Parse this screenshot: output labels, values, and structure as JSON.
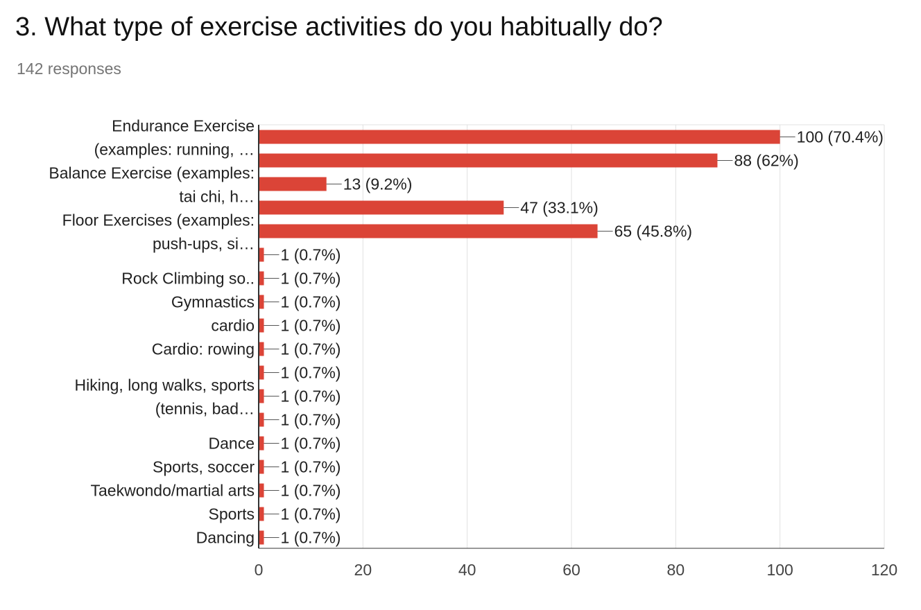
{
  "question": {
    "title": "3. What type of exercise activities do you habitually do?",
    "responses": "142 responses"
  },
  "colors": {
    "bar": "#db4437",
    "grid": "#e0e0e0",
    "axis": "#333333",
    "label": "#212121",
    "tick": "#444444"
  },
  "chart_data": {
    "type": "bar",
    "orientation": "horizontal",
    "categories": [
      "Endurance Exercise (examples: running, …",
      "",
      "Balance Exercise (examples: tai chi, h…",
      "",
      "Floor Exercises (examples: push-ups, si…",
      "",
      "Rock Climbing so..",
      "Gymnastics",
      "cardio",
      "Cardio: rowing",
      "",
      "Hiking, long walks, sports (tennis, bad…",
      "",
      "Dance",
      "Sports, soccer",
      "Taekwondo/martial arts",
      "Sports",
      "Dancing"
    ],
    "category_label_lines": [
      [
        "Endurance Exercise",
        "(examples: running, …"
      ],
      [],
      [
        "Balance Exercise (examples:",
        "tai chi, h…"
      ],
      [],
      [
        "Floor Exercises (examples:",
        "push-ups, si…"
      ],
      [],
      [
        "Rock Climbing so.."
      ],
      [
        "Gymnastics"
      ],
      [
        "cardio"
      ],
      [
        "Cardio: rowing"
      ],
      [],
      [
        "Hiking, long walks, sports",
        "(tennis, bad…"
      ],
      [],
      [
        "Dance"
      ],
      [
        "Sports, soccer"
      ],
      [
        "Taekwondo/martial arts"
      ],
      [
        "Sports"
      ],
      [
        "Dancing"
      ]
    ],
    "values": [
      100,
      88,
      13,
      47,
      65,
      1,
      1,
      1,
      1,
      1,
      1,
      1,
      1,
      1,
      1,
      1,
      1,
      1
    ],
    "data_labels": [
      "100 (70.4%)",
      "88 (62%)",
      "13 (9.2%)",
      "47 (33.1%)",
      "65 (45.8%)",
      "1 (0.7%)",
      "1 (0.7%)",
      "1 (0.7%)",
      "1 (0.7%)",
      "1 (0.7%)",
      "1 (0.7%)",
      "1 (0.7%)",
      "1 (0.7%)",
      "1 (0.7%)",
      "1 (0.7%)",
      "1 (0.7%)",
      "1 (0.7%)",
      "1 (0.7%)"
    ],
    "xticks": [
      0,
      20,
      40,
      60,
      80,
      100,
      120
    ],
    "xlim": [
      0,
      120
    ],
    "grid": true,
    "legend": "none"
  }
}
